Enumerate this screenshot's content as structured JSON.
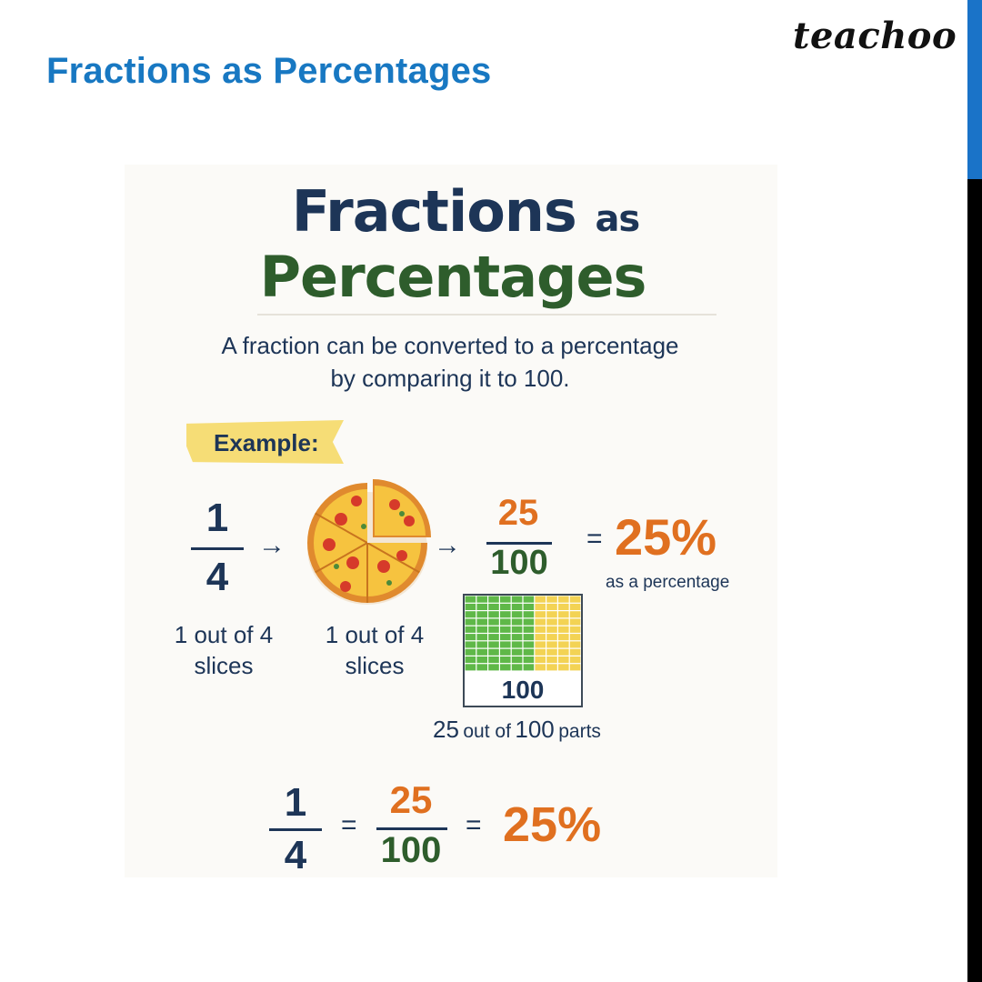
{
  "slide": {
    "title": "Fractions as Percentages",
    "brand": "teachoo",
    "colors": {
      "title_blue": "#1878c2",
      "accent_bar": "#1a73c8",
      "side_bar": "#000000"
    }
  },
  "poster": {
    "title_line1_main": "Fractions",
    "title_line1_small": "as",
    "title_line2": "Percentages",
    "description_line1": "A fraction can be converted to a percentage",
    "description_line2": "by comparing it to 100.",
    "example_label": "Example:",
    "fraction_numerator": "1",
    "fraction_denominator": "4",
    "arrow": "→",
    "pizza_icon": "pizza-icon",
    "equiv_numerator": "25",
    "equiv_denominator": "100",
    "equals": "=",
    "percent": "25%",
    "percent_caption": "as a percentage",
    "caption_fraction": [
      "1 out of 4",
      "slices"
    ],
    "caption_pizza": [
      "1 out of 4",
      "slices"
    ],
    "grid_label": "100",
    "grid_caption_num1": "25",
    "grid_caption_mid": "out of",
    "grid_caption_num2": "100",
    "grid_caption_end": "parts",
    "grid_shaded_fraction": 0.25,
    "colors": {
      "navy": "#1d3557",
      "orange": "#e07020",
      "green": "#2e5d2c",
      "grid_green": "#5fb848",
      "grid_yellow": "#f3d354",
      "ribbon": "#f6dd76"
    }
  }
}
